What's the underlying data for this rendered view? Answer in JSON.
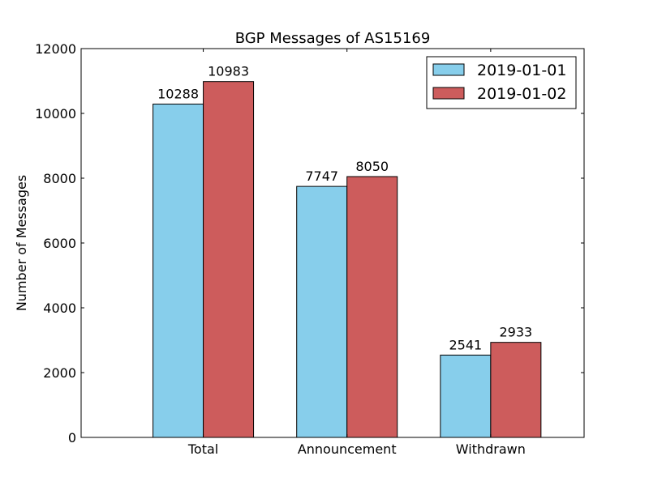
{
  "chart_data": {
    "type": "bar",
    "title": "BGP Messages of AS15169",
    "xlabel": "",
    "ylabel": "Number of Messages",
    "categories": [
      "Total",
      "Announcement",
      "Withdrawn"
    ],
    "series": [
      {
        "name": "2019-01-01",
        "color": "#87ceeb",
        "values": [
          10288,
          7747,
          2541
        ]
      },
      {
        "name": "2019-01-02",
        "color": "#cd5c5c",
        "values": [
          10983,
          8050,
          2933
        ]
      }
    ],
    "ylim": [
      0,
      12000
    ],
    "yticks": [
      0,
      2000,
      4000,
      6000,
      8000,
      10000,
      12000
    ],
    "grid": false,
    "legend_position": "top-right"
  }
}
